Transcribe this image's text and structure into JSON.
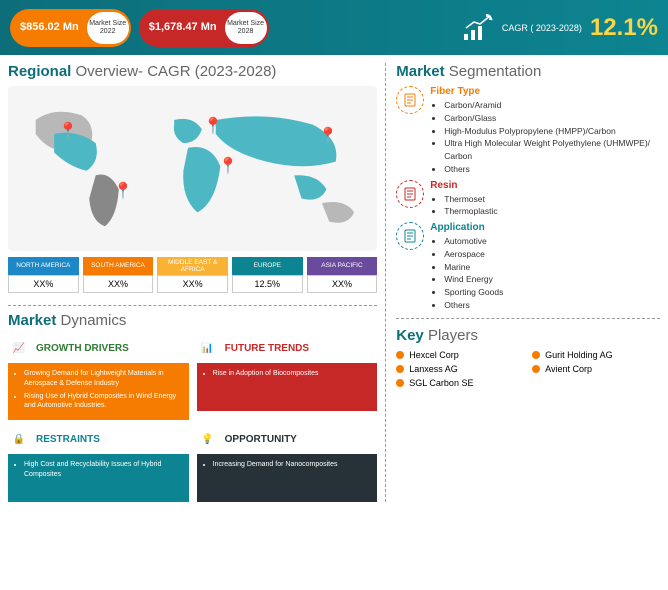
{
  "header": {
    "size2022_val": "$856.02\nMn",
    "size2022_lbl": "Market Size 2022",
    "size2028_val": "$1,678.47\nMn",
    "size2028_lbl": "Market Size 2028",
    "cagr_lbl": "CAGR ( 2023-2028)",
    "cagr_val": "12.1%",
    "pill1_bg": "#f57c00",
    "pill2_bg": "#c62828"
  },
  "regional": {
    "title1": "Regional ",
    "title2": "Overview- CAGR (2023-2028)",
    "regions": [
      {
        "name": "NORTH AMERICA",
        "val": "XX%",
        "color": "#1e88c7"
      },
      {
        "name": "SOUTH AMERICA",
        "val": "XX%",
        "color": "#f57c00"
      },
      {
        "name": "MIDDLE EAST & AFRICA",
        "val": "XX%",
        "color": "#f9b233"
      },
      {
        "name": "EUROPE",
        "val": "12.5%",
        "color": "#0d8491"
      },
      {
        "name": "ASIA PACIFIC",
        "val": "XX%",
        "color": "#6a4a9c"
      }
    ]
  },
  "dynamics": {
    "title1": "Market ",
    "title2": "Dynamics",
    "boxes": [
      {
        "hdr": "GROWTH DRIVERS",
        "color": "#f57c00",
        "ico_color": "#2e7d32",
        "items": [
          "Growing Demand for Lightweight Materials in Aerospace & Defense Industry",
          "Rising Use of Hybrid Composites in Wind Energy and Automotive Industries."
        ]
      },
      {
        "hdr": "FUTURE TRENDS",
        "color": "#c62828",
        "ico_color": "#c62828",
        "items": [
          "Rise in Adoption of Biocomposites"
        ]
      },
      {
        "hdr": "RESTRAINTS",
        "color": "#0d8491",
        "ico_color": "#0d8491",
        "items": [
          "High Cost and Recyclability Issues of Hybrid Composites"
        ]
      },
      {
        "hdr": "OPPORTUNITY",
        "color": "#263238",
        "ico_color": "#263238",
        "items": [
          "Increasing Demand for Nanocomposites"
        ]
      }
    ]
  },
  "segmentation": {
    "title1": "Market ",
    "title2": "Segmentation",
    "cats": [
      {
        "name": "Fiber Type",
        "color": "#f57c00",
        "items": [
          "Carbon/Aramid",
          "Carbon/Glass",
          "High-Modulus Polypropylene (HMPP)/Carbon",
          "Ultra High Molecular Weight Polyethylene (UHMWPE)/ Carbon",
          "Others"
        ]
      },
      {
        "name": "Resin",
        "color": "#c62828",
        "items": [
          "Thermoset",
          "Thermoplastic"
        ]
      },
      {
        "name": "Application",
        "color": "#0d8491",
        "items": [
          "Automotive",
          "Aerospace",
          "Marine",
          "Wind Energy",
          "Sporting Goods",
          "Others"
        ]
      }
    ]
  },
  "players": {
    "title1": "Key ",
    "title2": "Players",
    "list": [
      "Hexcel Corp",
      "Gurit Holding AG",
      "Lanxess AG",
      "Avient Corp",
      "SGL Carbon SE"
    ]
  }
}
